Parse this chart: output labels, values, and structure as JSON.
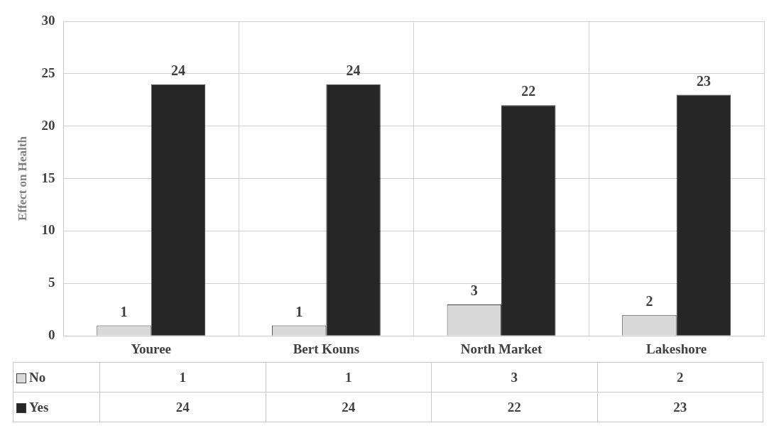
{
  "chart_data": {
    "type": "bar",
    "ylabel": "Effect on Health",
    "categories": [
      "Youree",
      "Bert Kouns",
      "North Market",
      "Lakeshore"
    ],
    "series": [
      {
        "name": "No",
        "color": "#d9d9d9",
        "values": [
          1,
          1,
          3,
          2
        ],
        "value_labels": [
          "1",
          "1",
          "3",
          "2"
        ]
      },
      {
        "name": "Yes",
        "color": "#262626",
        "values": [
          24,
          24,
          22,
          23
        ],
        "value_labels": [
          "24",
          "24",
          "22",
          "23"
        ]
      }
    ],
    "annotations": [
      "1",
      "1",
      "3",
      "2",
      "24",
      "24",
      "22",
      "23"
    ],
    "ylim": [
      0,
      30
    ],
    "yticks": [
      0,
      5,
      10,
      15,
      20,
      25,
      30
    ],
    "grid": true,
    "legend": "bottom",
    "data_labels": true
  }
}
